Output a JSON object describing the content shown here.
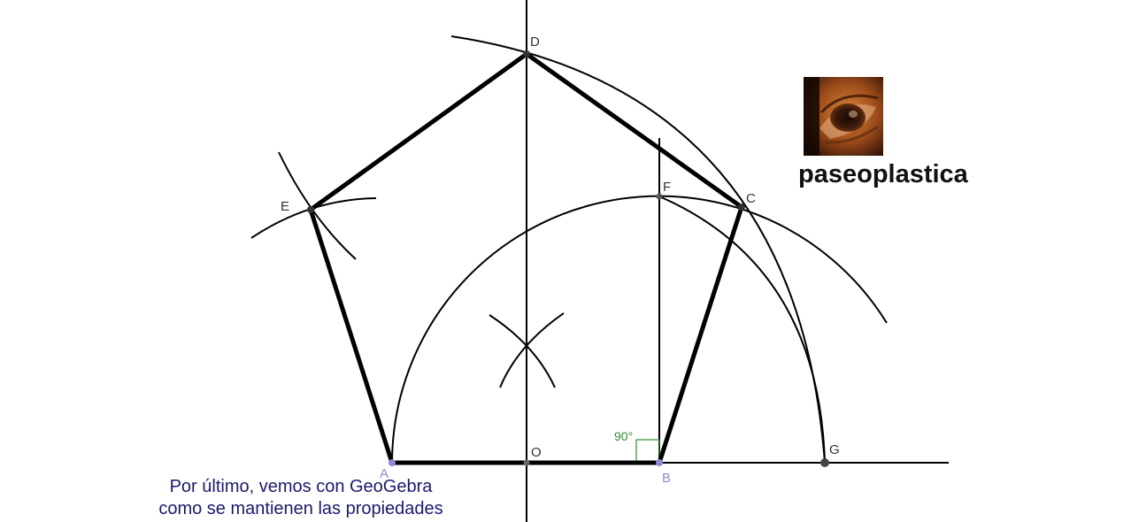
{
  "points": {
    "A": "A",
    "B": "B",
    "C": "C",
    "D": "D",
    "E": "E",
    "F": "F",
    "G": "G",
    "O": "O"
  },
  "right_angle_label": "90°",
  "brand": {
    "name": "paseoplastica",
    "logo_icon": "eye-photo-icon"
  },
  "caption": {
    "line1": "Por último, vemos con GeoGebra",
    "line2": "como se mantienen las propiedades"
  },
  "colors": {
    "stroke": "#000000",
    "point_label": "#333333",
    "point_label_blue": "#8c8cd8",
    "angle": "#2e8b2e",
    "caption": "#1a1a6e"
  }
}
